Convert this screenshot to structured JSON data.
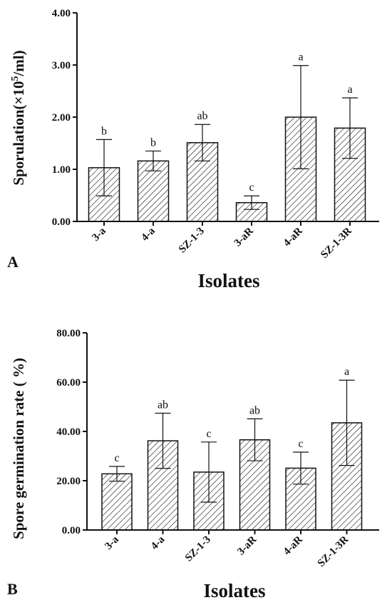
{
  "chart_data": [
    {
      "panel_label": "A",
      "type": "bar",
      "xlabel": "Isolates",
      "ylabel": "Sporulation(×10⁵/ml)",
      "ylim": [
        0,
        4
      ],
      "yticks": [
        "0.00",
        "1.00",
        "2.00",
        "3.00",
        "4.00"
      ],
      "categories": [
        "3-a",
        "4-a",
        "SZ-1-3",
        "3-aR",
        "4-aR",
        "SZ-1-3R"
      ],
      "values": [
        1.03,
        1.16,
        1.51,
        0.36,
        2.0,
        1.79
      ],
      "errors": [
        0.54,
        0.19,
        0.35,
        0.13,
        0.99,
        0.58
      ],
      "significance": [
        "b",
        "b",
        "ab",
        "c",
        "a",
        "a"
      ],
      "fill": "hatched"
    },
    {
      "panel_label": "B",
      "type": "bar",
      "xlabel": "Isolates",
      "ylabel": "Spore germination rate ( %)",
      "ylim": [
        0,
        80
      ],
      "yticks": [
        "0.00",
        "20.00",
        "40.00",
        "60.00",
        "80.00"
      ],
      "categories": [
        "3-a",
        "4-a",
        "SZ-1-3",
        "3-aR",
        "4-aR",
        "SZ-1-3R"
      ],
      "values": [
        22.8,
        36.2,
        23.5,
        36.6,
        25.1,
        43.5
      ],
      "errors": [
        3.0,
        11.2,
        12.2,
        8.5,
        6.5,
        17.3
      ],
      "significance": [
        "c",
        "ab",
        "c",
        "ab",
        "c",
        "a"
      ],
      "fill": "hatched"
    }
  ]
}
